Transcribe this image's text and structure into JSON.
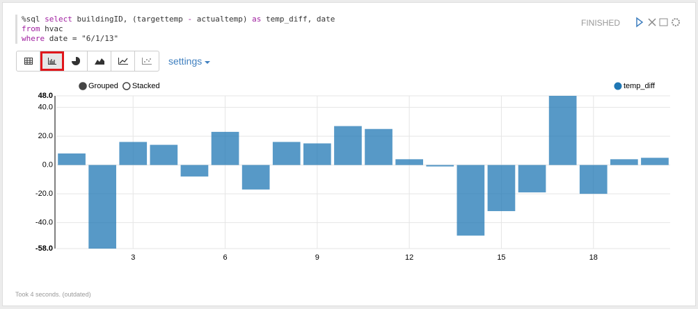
{
  "paragraph": {
    "code": {
      "lines": [
        [
          {
            "text": "%sql "
          },
          {
            "text": "select",
            "keyword": true
          },
          {
            "text": " buildingID, (targettemp "
          },
          {
            "text": "-",
            "keyword": true
          },
          {
            "text": " actualtemp) "
          },
          {
            "text": "as",
            "keyword": true
          },
          {
            "text": " temp_diff, date"
          }
        ],
        [
          {
            "text": "from",
            "keyword": true
          },
          {
            "text": " hvac"
          }
        ],
        [
          {
            "text": "where",
            "keyword": true
          },
          {
            "text": " date = "
          },
          {
            "text": "\"6/1/13\"",
            "string": true
          }
        ]
      ]
    },
    "status": "FINISHED",
    "settings": "settings",
    "controls": [
      "Grouped",
      "Stacked"
    ],
    "footer": "Took 4 seconds. (outdated)"
  },
  "chart_data": {
    "type": "bar",
    "x": [
      1,
      2,
      3,
      4,
      5,
      6,
      7,
      8,
      9,
      10,
      11,
      12,
      13,
      14,
      15,
      16,
      17,
      18,
      19,
      20
    ],
    "series": [
      {
        "name": "temp_diff",
        "color": "#1f77b4",
        "values": [
          8,
          -58,
          16,
          14,
          -8,
          23,
          -17,
          16,
          15,
          27,
          25,
          4,
          -1,
          -49,
          -32,
          -19,
          48,
          -20,
          4,
          5
        ]
      }
    ],
    "xlim": [
      0.5,
      20.5
    ],
    "xticks": [
      3,
      6,
      9,
      12,
      15,
      18
    ],
    "ylim": [
      -58,
      48
    ],
    "yticks": [
      {
        "value": -58,
        "label": "-58.0"
      },
      {
        "value": -40,
        "label": "-40.0"
      },
      {
        "value": -20,
        "label": "-20.0"
      },
      {
        "value": 0,
        "label": "0.0"
      },
      {
        "value": 20,
        "label": "20.0"
      },
      {
        "value": 40,
        "label": "40.0"
      },
      {
        "value": 48,
        "label": "48.0"
      }
    ],
    "grid": true,
    "legend": "top-right"
  }
}
